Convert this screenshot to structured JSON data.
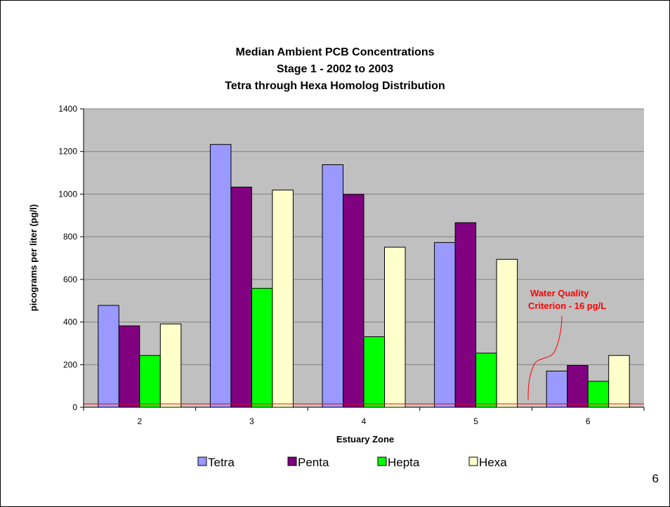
{
  "slide": {
    "page_number": "6"
  },
  "colors": {
    "plot_bg": "#c0c0c0",
    "grid": "#808080",
    "criterion_line": "#ff0000",
    "annotation": "#ff0000"
  },
  "chart_data": {
    "type": "bar",
    "title": [
      "Median Ambient PCB Concentrations",
      "Stage 1 - 2002 to 2003",
      "Tetra through Hexa Homolog Distribution"
    ],
    "xlabel": "Estuary Zone",
    "ylabel": "picograms per liter (pg/l)",
    "ylim": [
      0,
      1400
    ],
    "yticks": [
      0,
      200,
      400,
      600,
      800,
      1000,
      1200,
      1400
    ],
    "grid": true,
    "legend_position": "bottom",
    "categories": [
      "2",
      "3",
      "4",
      "5",
      "6"
    ],
    "series": [
      {
        "name": "Tetra",
        "color": "#9999ff",
        "values": [
          478,
          1233,
          1138,
          773,
          170
        ]
      },
      {
        "name": "Penta",
        "color": "#800080",
        "values": [
          382,
          1033,
          999,
          866,
          196
        ]
      },
      {
        "name": "Hepta",
        "color": "#00ff00",
        "values": [
          243,
          558,
          331,
          254,
          122
        ]
      },
      {
        "name": "Hexa",
        "color": "#ffffcc",
        "values": [
          391,
          1019,
          751,
          694,
          243
        ]
      }
    ],
    "reference_line": {
      "value": 16
    },
    "annotation": {
      "lines": [
        "Water Quality",
        "Criterion - 16 pg/L"
      ],
      "points_to_category": "6"
    }
  }
}
